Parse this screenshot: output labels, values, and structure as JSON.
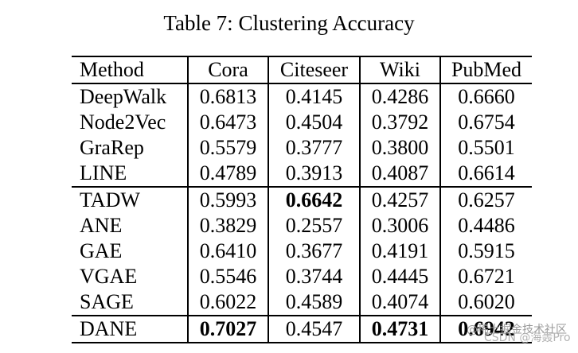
{
  "title": "Table 7: Clustering Accuracy",
  "table": {
    "columns": [
      "Method",
      "Cora",
      "Citeseer",
      "Wiki",
      "PubMed"
    ],
    "rows": [
      {
        "method": "DeepWalk",
        "values": [
          "0.6813",
          "0.4145",
          "0.4286",
          "0.6660"
        ],
        "bold": [],
        "group_end": false
      },
      {
        "method": "Node2Vec",
        "values": [
          "0.6473",
          "0.4504",
          "0.3792",
          "0.6754"
        ],
        "bold": [],
        "group_end": false
      },
      {
        "method": "GraRep",
        "values": [
          "0.5579",
          "0.3777",
          "0.3800",
          "0.5501"
        ],
        "bold": [],
        "group_end": false
      },
      {
        "method": "LINE",
        "values": [
          "0.4789",
          "0.3913",
          "0.4087",
          "0.6614"
        ],
        "bold": [],
        "group_end": true
      },
      {
        "method": "TADW",
        "values": [
          "0.5993",
          "0.6642",
          "0.4257",
          "0.6257"
        ],
        "bold": [
          1
        ],
        "group_end": false
      },
      {
        "method": "ANE",
        "values": [
          "0.3829",
          "0.2557",
          "0.3006",
          "0.4486"
        ],
        "bold": [],
        "group_end": false
      },
      {
        "method": "GAE",
        "values": [
          "0.6410",
          "0.3677",
          "0.4191",
          "0.5915"
        ],
        "bold": [],
        "group_end": false
      },
      {
        "method": "VGAE",
        "values": [
          "0.5546",
          "0.3744",
          "0.4445",
          "0.6721"
        ],
        "bold": [],
        "group_end": false
      },
      {
        "method": "SAGE",
        "values": [
          "0.6022",
          "0.4589",
          "0.4074",
          "0.6020"
        ],
        "bold": [],
        "group_end": true
      },
      {
        "method": "DANE",
        "values": [
          "0.7027",
          "0.4547",
          "0.4731",
          "0.6942"
        ],
        "bold": [
          0,
          2,
          3
        ],
        "group_end": false
      }
    ]
  },
  "watermark": {
    "line1": "@稀土掘金技术社区",
    "line2": "CSDN @海轰Pro"
  }
}
